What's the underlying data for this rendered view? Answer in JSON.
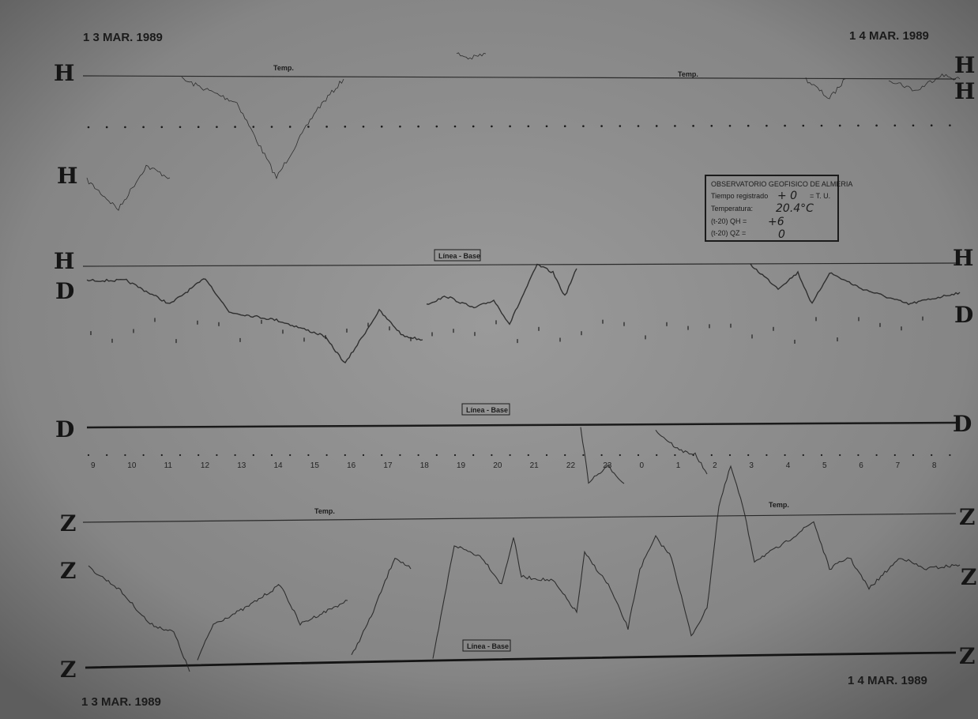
{
  "dates": {
    "top_left": "1 3 MAR. 1989",
    "top_right": "1 4 MAR. 1989",
    "bottom_left": "1 3 MAR. 1989",
    "bottom_right": "1 4 MAR. 1989"
  },
  "channels": {
    "h": "H",
    "d": "D",
    "z": "Z"
  },
  "temp_label": "Temp.",
  "baseline_label": "Línea - Base",
  "hours": [
    "9",
    "10",
    "11",
    "12",
    "13",
    "14",
    "15",
    "16",
    "17",
    "18",
    "19",
    "20",
    "21",
    "22",
    "23",
    "0",
    "1",
    "2",
    "3",
    "4",
    "5",
    "6",
    "7",
    "8"
  ],
  "stamp": {
    "title": "OBSERVATORIO GEOFISICO DE ALMERIA",
    "time_label": "Tiempo registrado",
    "time_value": "+ 0",
    "time_unit": "= T. U.",
    "temp_label": "Temperatura:",
    "temp_value": "20.4°C",
    "qh_label": "(t-20) QH =",
    "qh_value": "+6",
    "qz_label": "(t-20) QZ =",
    "qz_value": "0"
  }
}
